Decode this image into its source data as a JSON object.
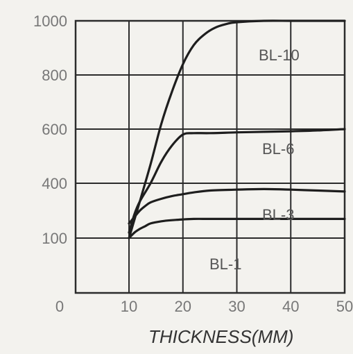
{
  "chart_data": {
    "type": "line",
    "title": "",
    "xlabel": "THICKNESS(MM)",
    "ylabel": "",
    "xlim": [
      10,
      50
    ],
    "ylim": [
      0,
      1000
    ],
    "grid": true,
    "y_tick_values": [
      100,
      400,
      600,
      800,
      1000
    ],
    "y_tick_labels": [
      "100",
      "400",
      "600",
      "800",
      "1000"
    ],
    "x_tick_values": [
      10,
      20,
      30,
      40,
      50
    ],
    "x_tick_labels": [
      "10",
      "20",
      "30",
      "40",
      "50"
    ],
    "origin_label": "0",
    "series": [
      {
        "name": "BL-10",
        "x": [
          10,
          12,
          14,
          16,
          18,
          20,
          22,
          24,
          26,
          28,
          30,
          35,
          40,
          45,
          50
        ],
        "y": [
          100,
          300,
          470,
          620,
          740,
          840,
          910,
          950,
          975,
          988,
          995,
          1000,
          1000,
          1000,
          1000
        ]
      },
      {
        "name": "BL-6",
        "x": [
          10,
          11,
          12,
          14,
          16,
          18,
          20,
          22,
          25,
          30,
          35,
          40,
          45,
          50
        ],
        "y": [
          130,
          230,
          300,
          400,
          480,
          540,
          580,
          585,
          585,
          588,
          590,
          592,
          595,
          600
        ]
      },
      {
        "name": "BL-3",
        "x": [
          10,
          11,
          12,
          13,
          14,
          16,
          18,
          20,
          22,
          25,
          30,
          35,
          40,
          45,
          50
        ],
        "y": [
          180,
          215,
          250,
          275,
          295,
          315,
          330,
          340,
          350,
          360,
          365,
          368,
          365,
          360,
          355
        ]
      },
      {
        "name": "BL-1",
        "x": [
          10,
          11,
          12,
          13,
          14,
          16,
          18,
          20,
          22,
          25,
          30,
          35,
          40,
          45,
          50
        ],
        "y": [
          100,
          130,
          150,
          165,
          180,
          192,
          198,
          202,
          205,
          205,
          205,
          205,
          205,
          205,
          205
        ]
      }
    ]
  },
  "labels": {
    "bl10": "BL-10",
    "bl6": "BL-6",
    "bl3": "BL-3",
    "bl1": "BL-1"
  }
}
